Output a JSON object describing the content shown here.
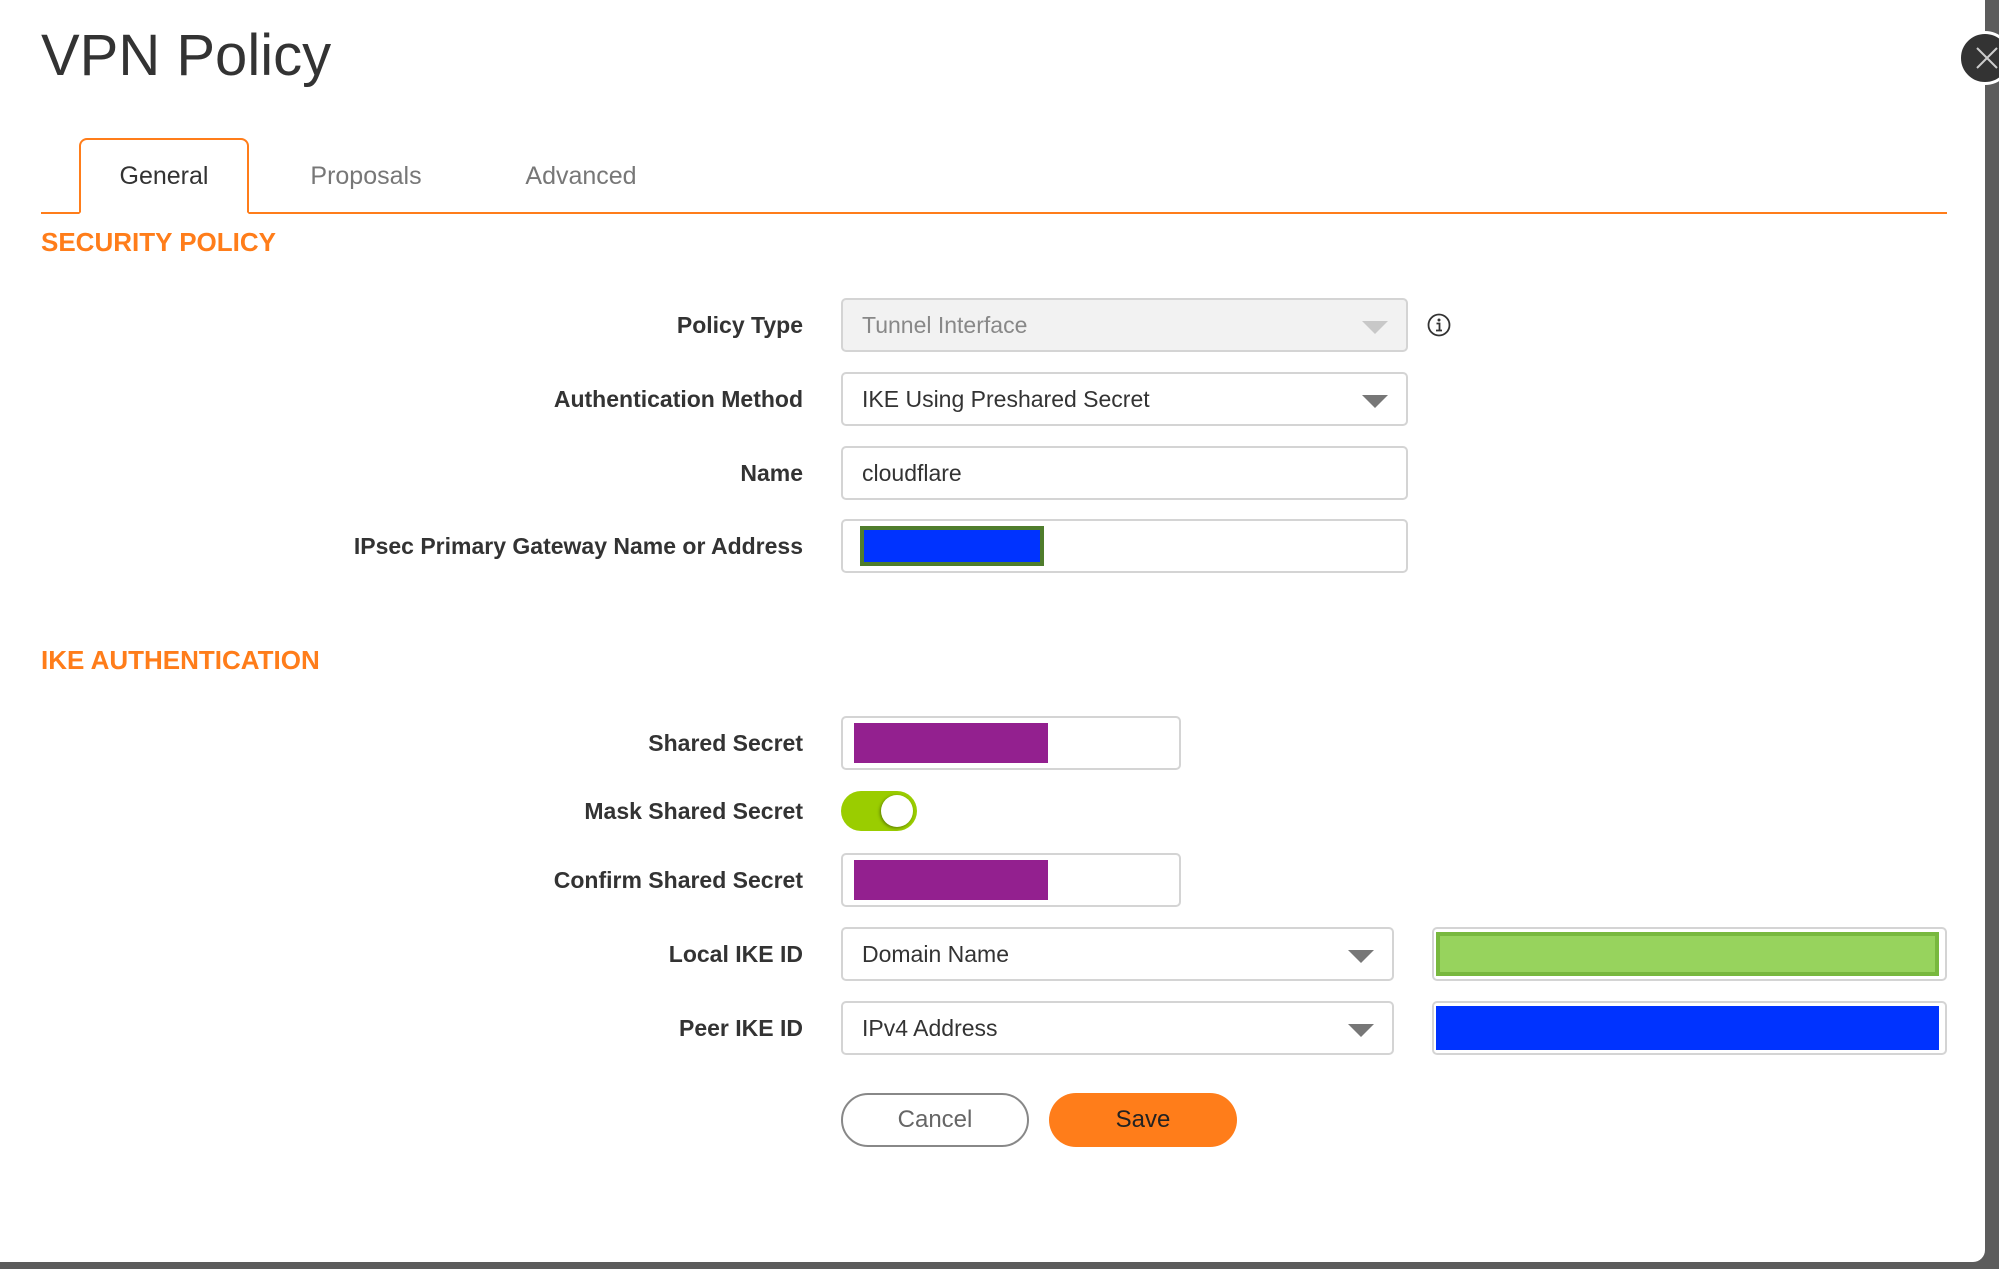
{
  "title": "VPN Policy",
  "tabs": [
    {
      "label": "General",
      "active": true
    },
    {
      "label": "Proposals"
    },
    {
      "label": "Advanced"
    }
  ],
  "sections": {
    "security_policy": "SECURITY POLICY",
    "ike_auth": "IKE AUTHENTICATION"
  },
  "fields": {
    "policy_type": {
      "label": "Policy Type",
      "value": "Tunnel Interface",
      "disabled": true
    },
    "auth_method": {
      "label": "Authentication Method",
      "value": "IKE Using Preshared Secret"
    },
    "name": {
      "label": "Name",
      "value": "cloudflare"
    },
    "gateway": {
      "label": "IPsec Primary Gateway Name or Address"
    },
    "shared_secret": {
      "label": "Shared Secret"
    },
    "mask_shared_secret": {
      "label": "Mask Shared Secret",
      "on": true
    },
    "confirm_shared_secret": {
      "label": "Confirm Shared Secret"
    },
    "local_ike_id": {
      "label": "Local IKE ID",
      "value": "Domain Name"
    },
    "peer_ike_id": {
      "label": "Peer IKE ID",
      "value": "IPv4 Address"
    }
  },
  "buttons": {
    "cancel": "Cancel",
    "save": "Save"
  },
  "icons": {
    "close": "close-icon",
    "info": "info-icon"
  },
  "colors": {
    "accent": "#ff7d1a",
    "toggle_on": "#9acd00",
    "redact_blue": "#0033ff",
    "redact_purple": "#93208f",
    "redact_green": "#97d35d"
  }
}
